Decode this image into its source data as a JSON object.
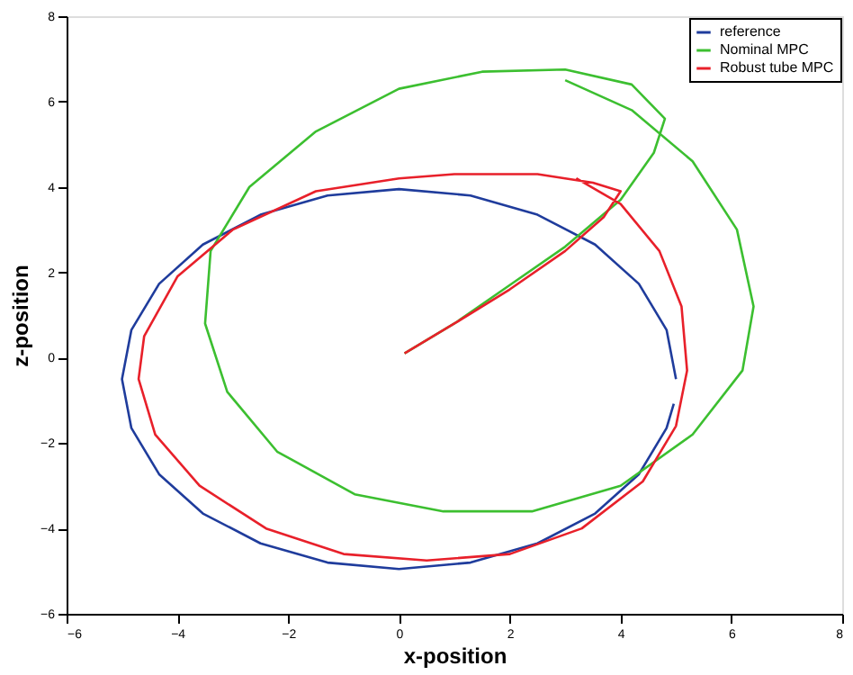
{
  "chart_data": {
    "type": "line",
    "xlabel": "x-position",
    "ylabel": "z-position",
    "xlim": [
      -6,
      8
    ],
    "ylim": [
      -6,
      8
    ],
    "xticks": [
      -6,
      -4,
      -2,
      0,
      2,
      4,
      6,
      8
    ],
    "yticks": [
      -6,
      -4,
      -2,
      0,
      2,
      4,
      6,
      8
    ],
    "grid": false,
    "legend": "top right",
    "marker": "none",
    "line_style": "solid",
    "series": [
      {
        "name": "reference",
        "color": "#1f3c9c",
        "x": [
          5,
          4.83,
          4.33,
          3.54,
          2.5,
          1.29,
          0,
          -1.29,
          -2.5,
          -3.54,
          -4.33,
          -4.83,
          -5,
          -4.83,
          -4.33,
          -3.54,
          -2.5,
          -1.29,
          0,
          1.29,
          2.5,
          3.54,
          4.33,
          4.83,
          4.96
        ],
        "values": [
          -0.5,
          0.65,
          1.73,
          2.65,
          3.35,
          3.8,
          3.95,
          3.8,
          3.35,
          2.65,
          1.73,
          0.65,
          -0.5,
          -1.65,
          -2.73,
          -3.65,
          -4.35,
          -4.8,
          -4.95,
          -4.8,
          -4.35,
          -3.65,
          -2.73,
          -1.65,
          -1.08
        ]
      },
      {
        "name": "Nominal MPC",
        "color": "#3cbf30",
        "x": [
          0.1,
          1,
          2,
          3,
          4,
          4.6,
          4.8,
          4.2,
          3,
          1.5,
          0,
          -1.5,
          -2.7,
          -3.4,
          -3.5,
          -3.1,
          -2.2,
          -0.8,
          0.8,
          2.4,
          4,
          5.3,
          6.2,
          6.4,
          6.1,
          5.3,
          4.2,
          3
        ],
        "values": [
          0.1,
          0.8,
          1.7,
          2.6,
          3.7,
          4.8,
          5.6,
          6.4,
          6.75,
          6.7,
          6.3,
          5.3,
          4,
          2.5,
          0.8,
          -0.8,
          -2.2,
          -3.2,
          -3.6,
          -3.6,
          -3,
          -1.8,
          -0.3,
          1.2,
          3,
          4.6,
          5.8,
          6.5
        ]
      },
      {
        "name": "Robust tube MPC",
        "color": "#e8202a",
        "x": [
          0.1,
          1,
          2,
          3,
          3.7,
          4,
          3.5,
          2.5,
          1,
          0,
          -1.5,
          -3,
          -4,
          -4.6,
          -4.7,
          -4.4,
          -3.6,
          -2.4,
          -1,
          0.5,
          2,
          3.3,
          4.4,
          5,
          5.2,
          5.1,
          4.7,
          4,
          3.2
        ],
        "values": [
          0.1,
          0.8,
          1.6,
          2.5,
          3.3,
          3.9,
          4.1,
          4.3,
          4.3,
          4.2,
          3.9,
          3,
          1.9,
          0.5,
          -0.5,
          -1.8,
          -3,
          -4,
          -4.6,
          -4.75,
          -4.6,
          -4,
          -2.9,
          -1.6,
          -0.3,
          1.2,
          2.5,
          3.6,
          4.2
        ]
      }
    ]
  }
}
